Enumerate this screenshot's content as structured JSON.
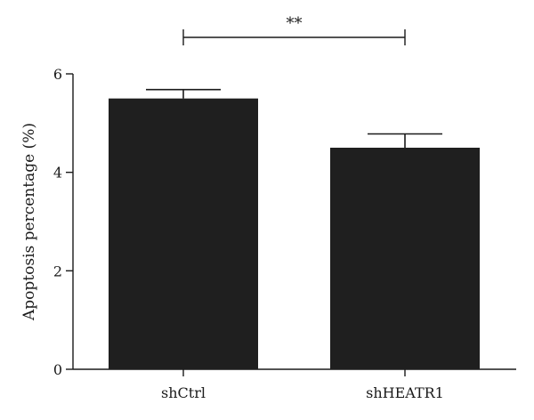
{
  "chart_data": {
    "type": "bar",
    "categories": [
      "shCtrl",
      "shHEATR1"
    ],
    "values": [
      5.5,
      4.5
    ],
    "errors": [
      0.18,
      0.28
    ],
    "title": "",
    "xlabel": "",
    "ylabel": "Apoptosis percentage (%)",
    "ylim": [
      0,
      6
    ],
    "yticks": [
      0,
      2,
      4,
      6
    ],
    "bar_color": "#1f1f1f",
    "grid": false,
    "significance": {
      "between": [
        "shCtrl",
        "shHEATR1"
      ],
      "label": "**"
    }
  }
}
